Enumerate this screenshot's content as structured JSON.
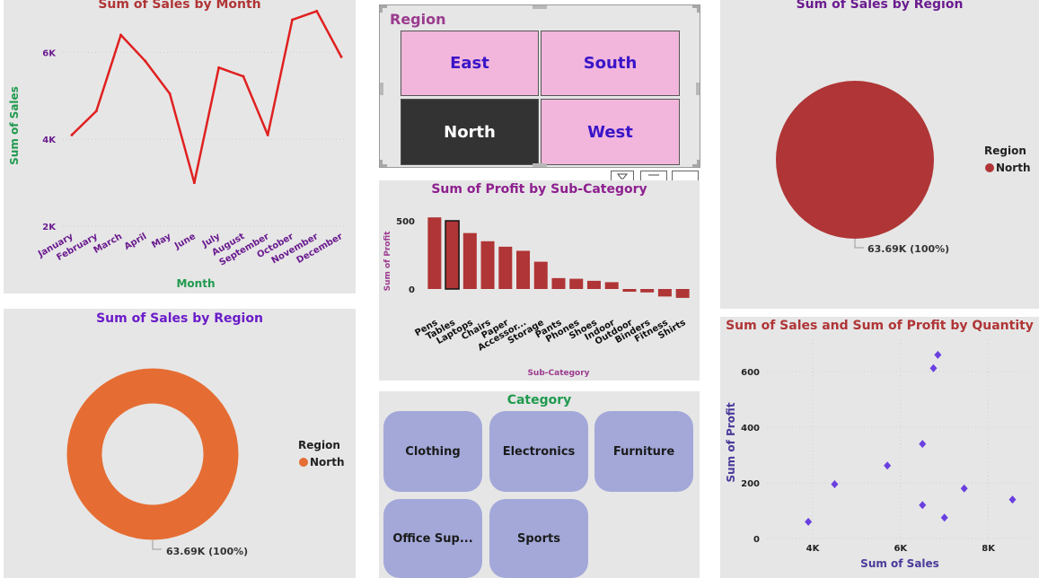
{
  "colors": {
    "panel_bg": "#e6e6e6",
    "line": "#e02020",
    "bar": "#b03536",
    "pie": "#b03536",
    "donut": "#e56d33",
    "scatter": "#6a3fe0",
    "slicer_tile": "#f2b6dc",
    "slicer_selected": "#333333",
    "category_button": "#a3a8d9"
  },
  "line_chart": {
    "title": "Sum of Sales by Month",
    "chart_data": {
      "type": "line",
      "title": "Sum of Sales by Month",
      "xlabel": "Month",
      "ylabel": "Sum of Sales",
      "categories": [
        "January",
        "February",
        "March",
        "April",
        "May",
        "June",
        "July",
        "August",
        "September",
        "October",
        "November",
        "December"
      ],
      "values": [
        4100,
        4650,
        6400,
        5800,
        5050,
        3000,
        5650,
        5450,
        4100,
        6750,
        6950,
        5900
      ],
      "ylim": [
        2000,
        7000
      ],
      "yticks": [
        {
          "value": 2000,
          "label": "2K"
        },
        {
          "value": 4000,
          "label": "4K"
        },
        {
          "value": 6000,
          "label": "6K"
        }
      ],
      "grid": true
    }
  },
  "region_slicer": {
    "title": "Region",
    "tiles": [
      {
        "label": "East",
        "selected": false
      },
      {
        "label": "South",
        "selected": false
      },
      {
        "label": "North",
        "selected": true
      },
      {
        "label": "West",
        "selected": false
      }
    ]
  },
  "pie_chart": {
    "title": "Sum of Sales by Region",
    "legend_title": "Region",
    "legend_item": "North",
    "data_label": "63.69K (100%)",
    "chart_data": {
      "type": "pie",
      "title": "Sum of Sales by Region",
      "categories": [
        "North"
      ],
      "values": [
        63690
      ],
      "legend": "right"
    }
  },
  "bar_chart": {
    "title": "Sum of Profit by Sub-Category",
    "chart_data": {
      "type": "bar",
      "title": "Sum of Profit by Sub-Category",
      "xlabel": "Sub-Category",
      "ylabel": "Sum of Profit",
      "categories": [
        "Pens",
        "Tables",
        "Laptops",
        "Chairs",
        "Paper",
        "Accessor...",
        "Storage",
        "Pants",
        "Phones",
        "Shoes",
        "Indoor",
        "Outdoor",
        "Binders",
        "Fitness",
        "Shirts"
      ],
      "values": [
        525,
        500,
        410,
        350,
        310,
        280,
        200,
        80,
        75,
        60,
        50,
        -20,
        -25,
        -55,
        -65
      ],
      "highlighted": "Tables",
      "ylim": [
        -100,
        600
      ],
      "yticks": [
        {
          "value": 0,
          "label": "0"
        },
        {
          "value": 500,
          "label": "500"
        }
      ]
    }
  },
  "donut_chart": {
    "title": "Sum of Sales by Region",
    "legend_title": "Region",
    "legend_item": "North",
    "data_label": "63.69K (100%)",
    "chart_data": {
      "type": "pie",
      "title": "Sum of Sales by Region",
      "categories": [
        "North"
      ],
      "values": [
        63690
      ],
      "legend": "right"
    }
  },
  "category_slicer": {
    "title": "Category",
    "buttons": [
      "Clothing",
      "Electronics",
      "Furniture",
      "Office Sup...",
      "Sports"
    ]
  },
  "scatter_chart": {
    "title": "Sum of Sales and Sum of Profit by Quantity",
    "chart_data": {
      "type": "scatter",
      "title": "Sum of Sales and Sum of Profit by Quantity",
      "xlabel": "Sum of Sales",
      "ylabel": "Sum of Profit",
      "points": [
        {
          "x": 3900,
          "y": 60
        },
        {
          "x": 4500,
          "y": 195
        },
        {
          "x": 5700,
          "y": 262
        },
        {
          "x": 6500,
          "y": 340
        },
        {
          "x": 6500,
          "y": 120
        },
        {
          "x": 6750,
          "y": 612
        },
        {
          "x": 6850,
          "y": 660
        },
        {
          "x": 7000,
          "y": 75
        },
        {
          "x": 7450,
          "y": 180
        },
        {
          "x": 8550,
          "y": 140
        }
      ],
      "xlim": [
        3000,
        9000
      ],
      "ylim": [
        -50,
        700
      ],
      "xticks": [
        {
          "value": 4000,
          "label": "4K"
        },
        {
          "value": 6000,
          "label": "6K"
        },
        {
          "value": 8000,
          "label": "8K"
        }
      ],
      "yticks": [
        {
          "value": 0,
          "label": "0"
        },
        {
          "value": 200,
          "label": "200"
        },
        {
          "value": 400,
          "label": "400"
        },
        {
          "value": 600,
          "label": "600"
        }
      ],
      "grid": true
    }
  }
}
